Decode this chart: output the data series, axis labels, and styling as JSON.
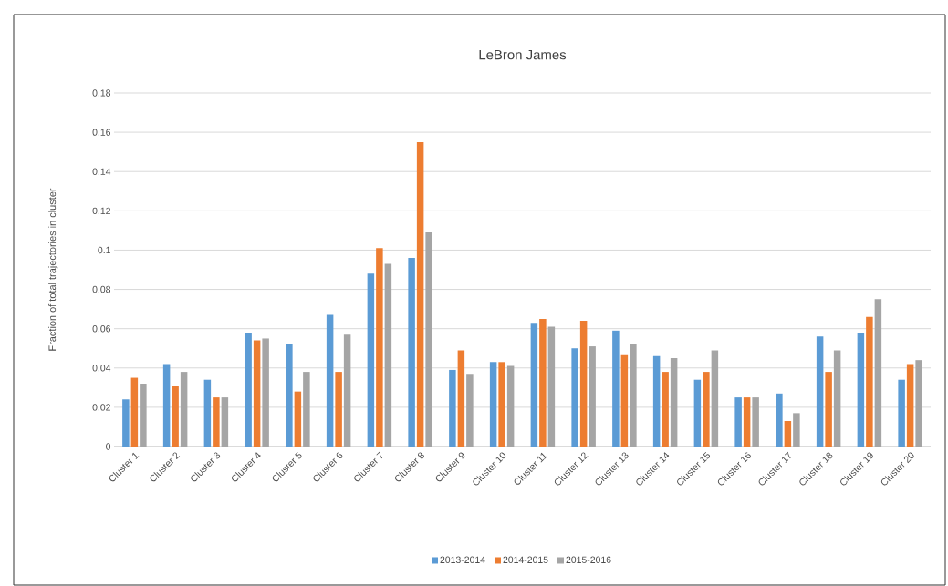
{
  "chart_data": {
    "type": "bar",
    "title": "LeBron James",
    "ylabel": "Fraction of total trajectories  in cluster",
    "categories": [
      "Cluster 1",
      "Cluster 2",
      "Cluster 3",
      "Cluster 4",
      "Cluster 5",
      "Cluster 6",
      "Cluster 7",
      "Cluster 8",
      "Cluster 9",
      "Cluster 10",
      "Cluster 11",
      "Cluster 12",
      "Cluster 13",
      "Cluster 14",
      "Cluster 15",
      "Cluster 16",
      "Cluster 17",
      "Cluster 18",
      "Cluster 19",
      "Cluster 20"
    ],
    "series": [
      {
        "name": "2013-2014",
        "color": "#5b9bd5",
        "values": [
          0.024,
          0.042,
          0.034,
          0.058,
          0.052,
          0.067,
          0.088,
          0.096,
          0.039,
          0.043,
          0.063,
          0.05,
          0.059,
          0.046,
          0.034,
          0.025,
          0.027,
          0.056,
          0.058,
          0.034
        ]
      },
      {
        "name": "2014-2015",
        "color": "#ed7d31",
        "values": [
          0.035,
          0.031,
          0.025,
          0.054,
          0.028,
          0.038,
          0.101,
          0.155,
          0.049,
          0.043,
          0.065,
          0.064,
          0.047,
          0.038,
          0.038,
          0.025,
          0.013,
          0.038,
          0.066,
          0.042
        ]
      },
      {
        "name": "2015-2016",
        "color": "#a5a5a5",
        "values": [
          0.032,
          0.038,
          0.025,
          0.055,
          0.038,
          0.057,
          0.093,
          0.109,
          0.037,
          0.041,
          0.061,
          0.051,
          0.052,
          0.045,
          0.049,
          0.025,
          0.017,
          0.049,
          0.075,
          0.044
        ]
      }
    ],
    "ylim": [
      0,
      0.18
    ],
    "yticks": [
      0,
      0.02,
      0.04,
      0.06,
      0.08,
      0.1,
      0.12,
      0.14,
      0.16,
      0.18
    ],
    "grid": "y",
    "legend": "bottom"
  }
}
